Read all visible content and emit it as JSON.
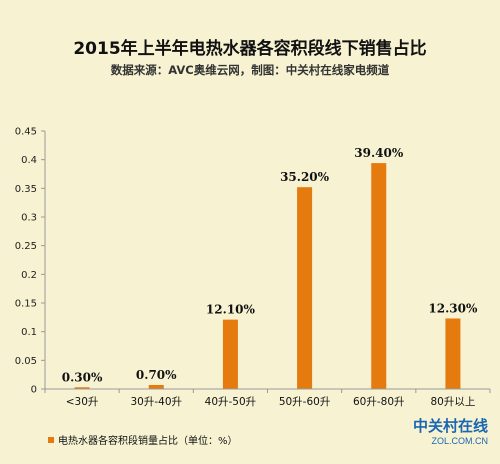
{
  "chart_data": {
    "type": "bar",
    "title": "2015年上半年电热水器各容积段线下销售占比",
    "subtitle": "数据来源：AVC奥维云网，制图：中关村在线家电频道",
    "categories": [
      "<30升",
      "30升-40升",
      "40升-50升",
      "50升-60升",
      "60升-80升",
      "80升以上"
    ],
    "series": [
      {
        "name": "电热水器各容积段销量占比（单位：%）",
        "values": [
          0.003,
          0.007,
          0.121,
          0.352,
          0.394,
          0.123
        ],
        "labels": [
          "0.30%",
          "0.70%",
          "12.10%",
          "35.20%",
          "39.40%",
          "12.30%"
        ]
      }
    ],
    "ylim": [
      0,
      0.45
    ],
    "yticks": [
      "0",
      "0.05",
      "0.1",
      "0.15",
      "0.2",
      "0.25",
      "0.3",
      "0.35",
      "0.4",
      "0.45"
    ],
    "legend_position": "bottom-left",
    "grid": false,
    "colors": {
      "bar": "#e57b0f",
      "axis": "#999999"
    }
  },
  "watermark": {
    "brand": "中关村在线",
    "domain": "ZOL.COM.CN"
  }
}
